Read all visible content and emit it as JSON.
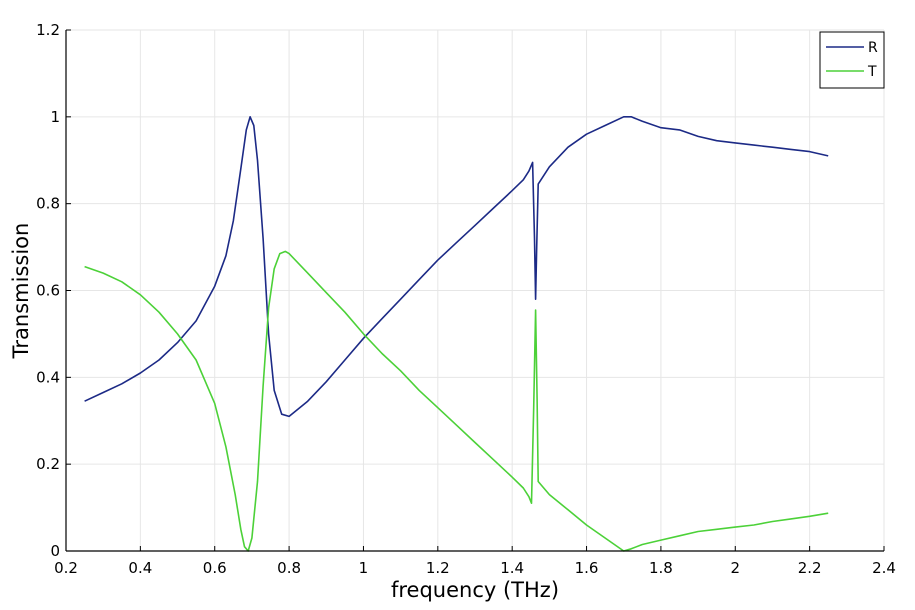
{
  "chart_data": {
    "type": "line",
    "xlabel": "frequency (THz)",
    "ylabel": "Transmission",
    "xlim": [
      0.2,
      2.4
    ],
    "ylim": [
      0,
      1.2
    ],
    "xticks": [
      "0.2",
      "0.4",
      "0.6",
      "0.8",
      "1",
      "1.2",
      "1.4",
      "1.6",
      "1.8",
      "2",
      "2.2",
      "2.4"
    ],
    "yticks": [
      "0",
      "0.2",
      "0.4",
      "0.6",
      "0.8",
      "1",
      "1.2"
    ],
    "grid": true,
    "legend_position": "top-right",
    "series": [
      {
        "name": "R",
        "color": "#1c2a86",
        "points": [
          [
            0.25,
            0.345
          ],
          [
            0.3,
            0.365
          ],
          [
            0.35,
            0.385
          ],
          [
            0.4,
            0.41
          ],
          [
            0.45,
            0.44
          ],
          [
            0.5,
            0.48
          ],
          [
            0.55,
            0.53
          ],
          [
            0.6,
            0.61
          ],
          [
            0.63,
            0.68
          ],
          [
            0.65,
            0.76
          ],
          [
            0.67,
            0.88
          ],
          [
            0.685,
            0.97
          ],
          [
            0.695,
            1.0
          ],
          [
            0.705,
            0.98
          ],
          [
            0.715,
            0.9
          ],
          [
            0.73,
            0.72
          ],
          [
            0.745,
            0.5
          ],
          [
            0.76,
            0.37
          ],
          [
            0.78,
            0.315
          ],
          [
            0.8,
            0.31
          ],
          [
            0.85,
            0.345
          ],
          [
            0.9,
            0.39
          ],
          [
            0.95,
            0.44
          ],
          [
            1.0,
            0.49
          ],
          [
            1.05,
            0.535
          ],
          [
            1.1,
            0.58
          ],
          [
            1.15,
            0.625
          ],
          [
            1.2,
            0.67
          ],
          [
            1.25,
            0.71
          ],
          [
            1.3,
            0.75
          ],
          [
            1.35,
            0.79
          ],
          [
            1.4,
            0.83
          ],
          [
            1.43,
            0.855
          ],
          [
            1.445,
            0.875
          ],
          [
            1.455,
            0.895
          ],
          [
            1.46,
            0.72
          ],
          [
            1.463,
            0.58
          ],
          [
            1.466,
            0.7
          ],
          [
            1.47,
            0.845
          ],
          [
            1.5,
            0.885
          ],
          [
            1.55,
            0.93
          ],
          [
            1.6,
            0.96
          ],
          [
            1.65,
            0.98
          ],
          [
            1.7,
            1.0
          ],
          [
            1.72,
            1.0
          ],
          [
            1.75,
            0.99
          ],
          [
            1.8,
            0.975
          ],
          [
            1.85,
            0.97
          ],
          [
            1.9,
            0.955
          ],
          [
            1.95,
            0.945
          ],
          [
            2.0,
            0.94
          ],
          [
            2.05,
            0.935
          ],
          [
            2.1,
            0.93
          ],
          [
            2.15,
            0.925
          ],
          [
            2.2,
            0.92
          ],
          [
            2.25,
            0.91
          ]
        ]
      },
      {
        "name": "T",
        "color": "#4cd138",
        "points": [
          [
            0.25,
            0.655
          ],
          [
            0.3,
            0.64
          ],
          [
            0.35,
            0.62
          ],
          [
            0.4,
            0.59
          ],
          [
            0.45,
            0.55
          ],
          [
            0.5,
            0.5
          ],
          [
            0.55,
            0.44
          ],
          [
            0.6,
            0.34
          ],
          [
            0.63,
            0.24
          ],
          [
            0.655,
            0.13
          ],
          [
            0.67,
            0.05
          ],
          [
            0.68,
            0.01
          ],
          [
            0.69,
            0.0
          ],
          [
            0.7,
            0.03
          ],
          [
            0.715,
            0.16
          ],
          [
            0.73,
            0.38
          ],
          [
            0.745,
            0.56
          ],
          [
            0.76,
            0.65
          ],
          [
            0.775,
            0.685
          ],
          [
            0.79,
            0.69
          ],
          [
            0.8,
            0.685
          ],
          [
            0.85,
            0.64
          ],
          [
            0.9,
            0.595
          ],
          [
            0.95,
            0.55
          ],
          [
            1.0,
            0.5
          ],
          [
            1.05,
            0.455
          ],
          [
            1.1,
            0.415
          ],
          [
            1.15,
            0.37
          ],
          [
            1.2,
            0.33
          ],
          [
            1.25,
            0.29
          ],
          [
            1.3,
            0.25
          ],
          [
            1.35,
            0.21
          ],
          [
            1.4,
            0.17
          ],
          [
            1.43,
            0.145
          ],
          [
            1.445,
            0.125
          ],
          [
            1.452,
            0.11
          ],
          [
            1.458,
            0.33
          ],
          [
            1.463,
            0.555
          ],
          [
            1.467,
            0.35
          ],
          [
            1.47,
            0.16
          ],
          [
            1.5,
            0.13
          ],
          [
            1.55,
            0.095
          ],
          [
            1.6,
            0.06
          ],
          [
            1.65,
            0.03
          ],
          [
            1.7,
            0.0
          ],
          [
            1.72,
            0.005
          ],
          [
            1.75,
            0.015
          ],
          [
            1.8,
            0.025
          ],
          [
            1.85,
            0.035
          ],
          [
            1.9,
            0.045
          ],
          [
            1.95,
            0.05
          ],
          [
            2.0,
            0.055
          ],
          [
            2.05,
            0.06
          ],
          [
            2.1,
            0.068
          ],
          [
            2.15,
            0.074
          ],
          [
            2.2,
            0.08
          ],
          [
            2.25,
            0.087
          ]
        ]
      }
    ]
  }
}
